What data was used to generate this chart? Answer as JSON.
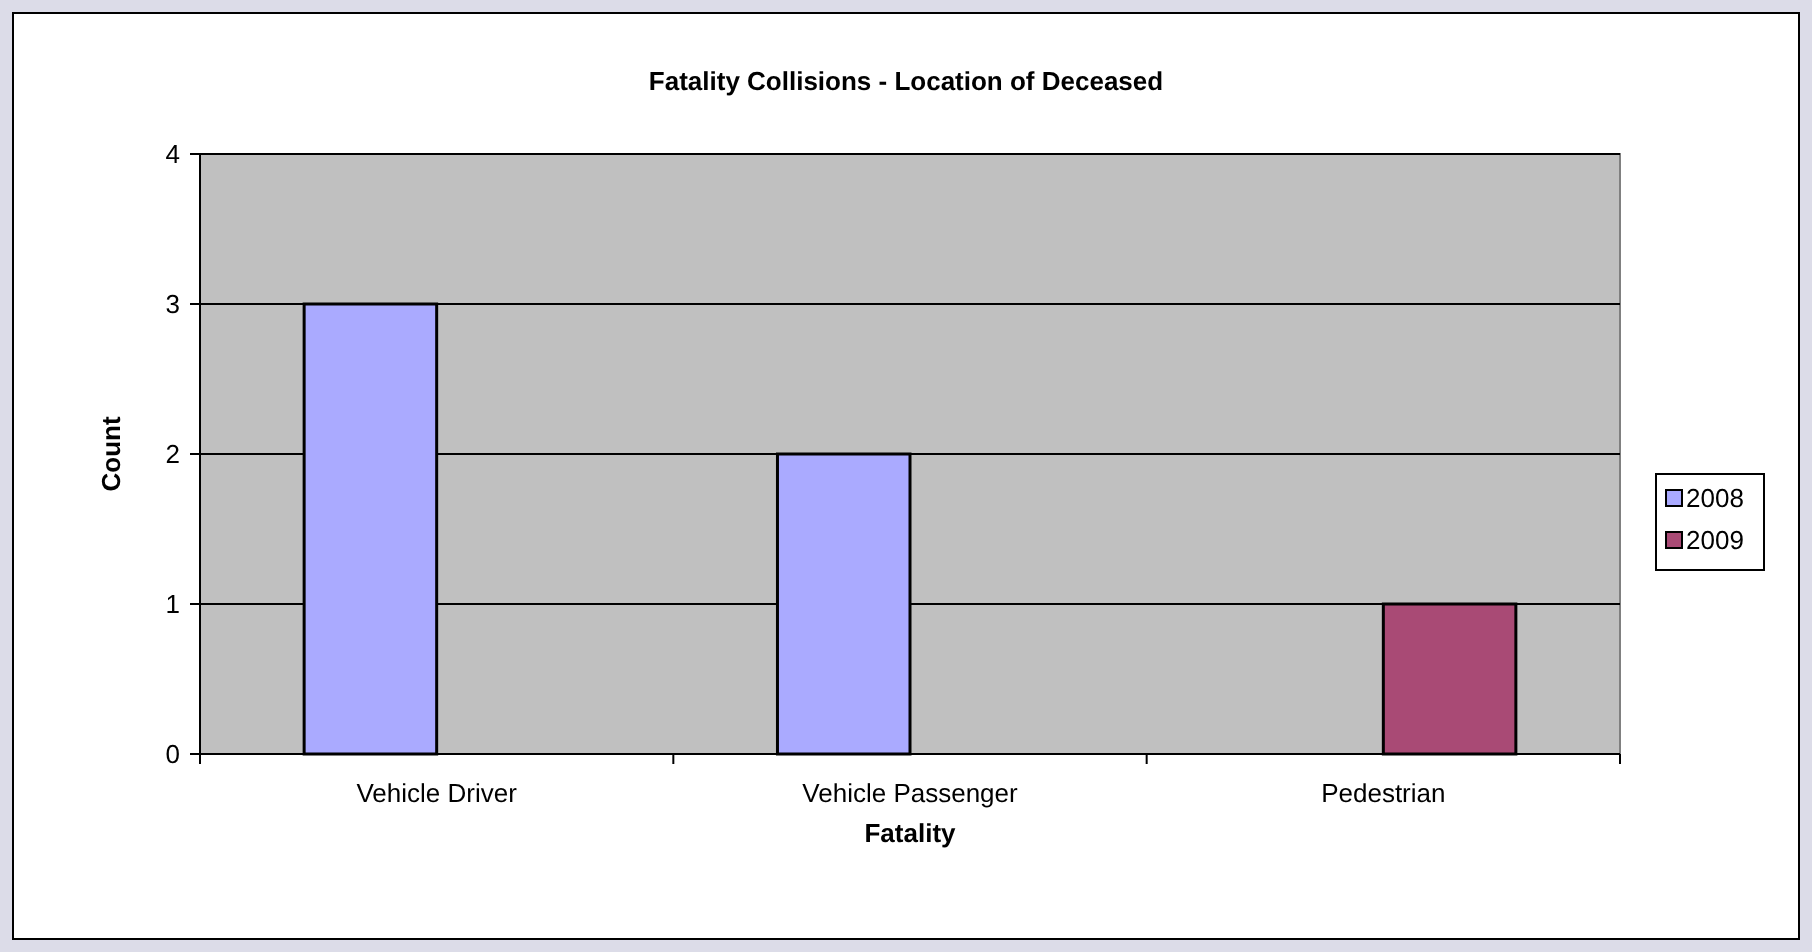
{
  "chart_data": {
    "type": "bar",
    "title": "Fatality Collisions - Location of Deceased",
    "xlabel": "Fatality",
    "ylabel": "Count",
    "categories": [
      "Vehicle Driver",
      "Vehicle Passenger",
      "Pedestrian"
    ],
    "series": [
      {
        "name": "2008",
        "color": "#aaaaff",
        "values": [
          3,
          2,
          null
        ]
      },
      {
        "name": "2009",
        "color": "#a94a75",
        "values": [
          null,
          null,
          1
        ]
      }
    ],
    "ylim": [
      0,
      4
    ],
    "yticks": [
      0,
      1,
      2,
      3,
      4
    ],
    "grid": "y",
    "legend": "right"
  }
}
